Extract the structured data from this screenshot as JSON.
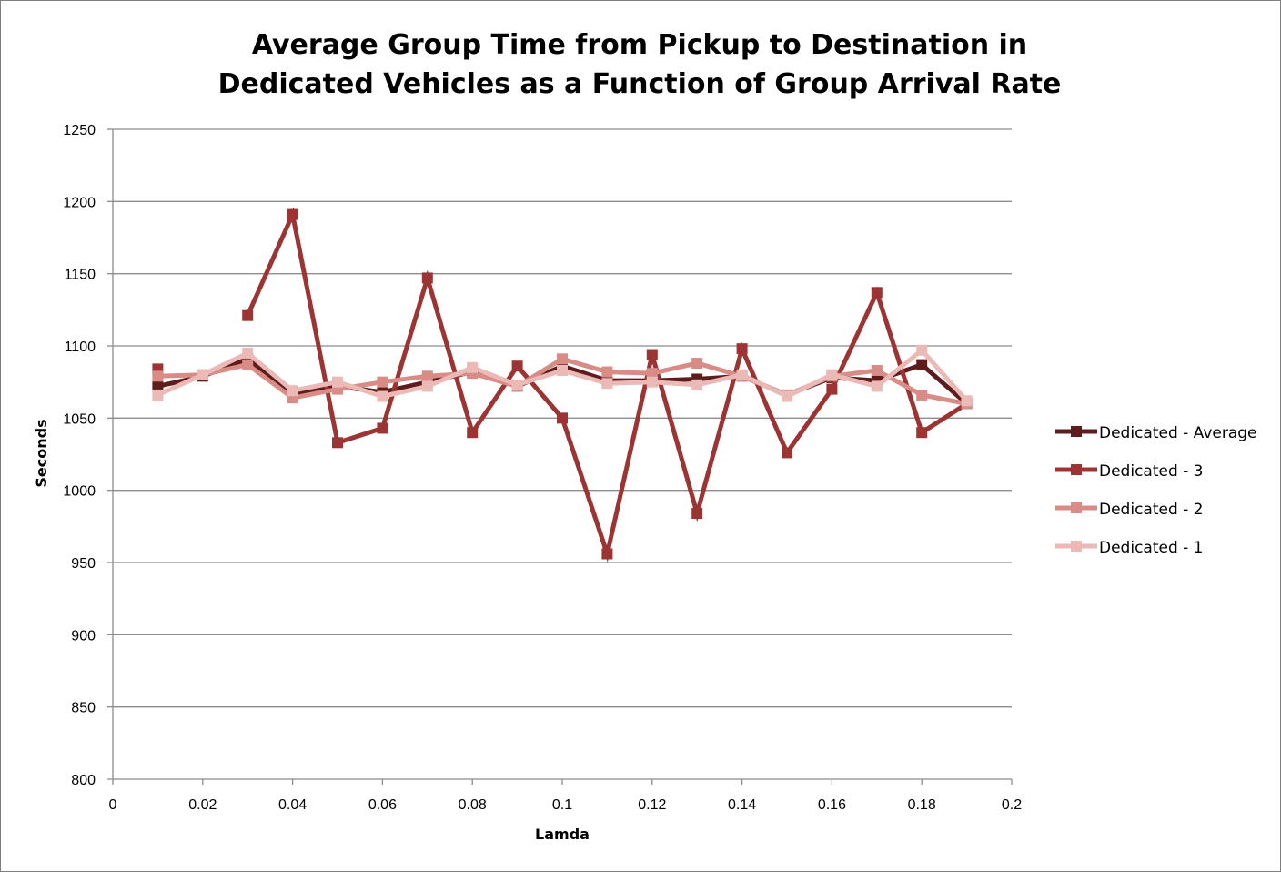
{
  "chart_data": {
    "type": "line",
    "title_lines": [
      "Average Group Time from Pickup to Destination in",
      "Dedicated Vehicles as a Function of Group Arrival Rate"
    ],
    "xlabel": "Lamda",
    "ylabel": "Seconds",
    "xlim": [
      0,
      0.2
    ],
    "ylim": [
      800,
      1250
    ],
    "x_ticks": [
      "0",
      "0.02",
      "0.04",
      "0.06",
      "0.08",
      "0.1",
      "0.12",
      "0.14",
      "0.16",
      "0.18",
      "0.2"
    ],
    "y_ticks": [
      "800",
      "850",
      "900",
      "950",
      "1000",
      "1050",
      "1100",
      "1150",
      "1200",
      "1250"
    ],
    "grid": "horizontal",
    "legend_position": "right",
    "x": [
      0.01,
      0.02,
      0.03,
      0.04,
      0.05,
      0.06,
      0.07,
      0.08,
      0.09,
      0.1,
      0.11,
      0.12,
      0.13,
      0.14,
      0.15,
      0.16,
      0.17,
      0.18,
      0.19
    ],
    "series": [
      {
        "name": "Dedicated - Average",
        "color": "#5e1d1d",
        "values": [
          1072,
          1079,
          1091,
          1066,
          1072,
          1068,
          1075,
          1082,
          1072,
          1086,
          1076,
          1076,
          1077,
          1079,
          1066,
          1078,
          1076,
          1087,
          1060
        ]
      },
      {
        "name": "Dedicated - 3",
        "color": "#9c3434",
        "values": [
          1084,
          null,
          1121,
          1191,
          1033,
          1043,
          1147,
          1040,
          1086,
          1050,
          956,
          1094,
          984,
          1098,
          1026,
          1070,
          1137,
          1040,
          1060
        ]
      },
      {
        "name": "Dedicated - 2",
        "color": "#d98b86",
        "values": [
          1079,
          1080,
          1087,
          1064,
          1070,
          1075,
          1079,
          1081,
          1072,
          1091,
          1082,
          1081,
          1088,
          1079,
          1066,
          1079,
          1083,
          1066,
          1060
        ]
      },
      {
        "name": "Dedicated - 1",
        "color": "#ebb9b6",
        "values": [
          1066,
          1080,
          1095,
          1069,
          1075,
          1065,
          1072,
          1085,
          1073,
          1083,
          1074,
          1075,
          1073,
          1080,
          1065,
          1080,
          1072,
          1097,
          1062
        ]
      }
    ]
  }
}
